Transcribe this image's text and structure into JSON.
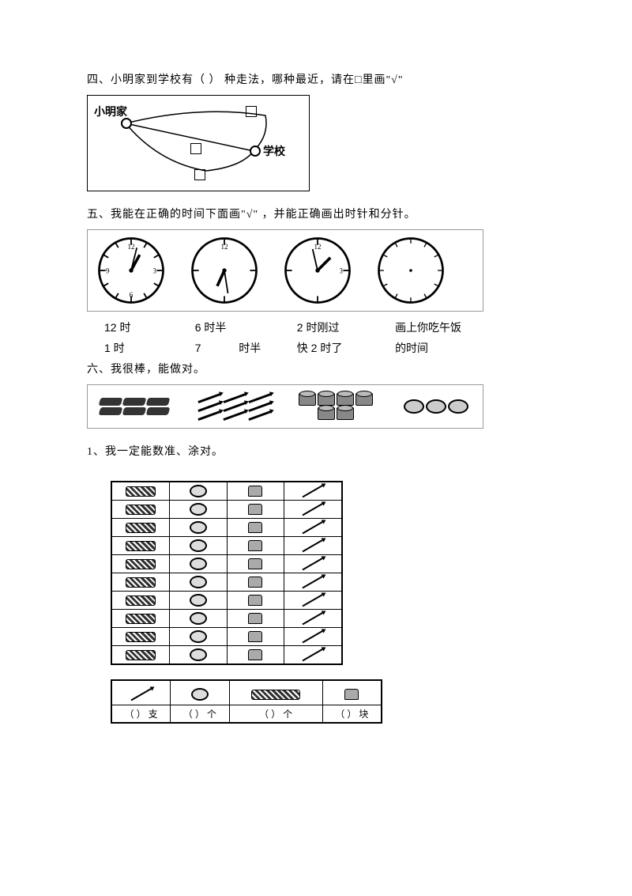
{
  "q4": {
    "title": "四、小明家到学校有（ ）  种走法，哪种最近，请在□里画\"√\"",
    "home_label": "小明家",
    "school_label": "学校"
  },
  "q5": {
    "title": " 五、我能在正确的时间下面画\"√\"  ，并能正确画出时针和分针。",
    "clocks": [
      {
        "hour_angle": -60,
        "min_angle": 20,
        "has_hands": true
      },
      {
        "hour_angle": 200,
        "min_angle": 165,
        "has_hands": true
      },
      {
        "hour_angle": 25,
        "min_angle": -30,
        "has_hands": true
      },
      {
        "has_hands": false
      }
    ],
    "row1": [
      {
        "text": "12 时"
      },
      {
        "text": "6 时半"
      },
      {
        "text": "2 时刚过"
      },
      {
        "text": "画上你吃午饭"
      }
    ],
    "row2": [
      {
        "text": "1 时"
      },
      {
        "text_a": "7",
        "text_b": "时半"
      },
      {
        "text": "快 2 时了"
      },
      {
        "text": "的时间"
      }
    ]
  },
  "q6": {
    "title": "六、我很棒，能做对。",
    "sub1": "1、我一定能数准、涂对。",
    "groups": {
      "erasers": 6,
      "pencils": 9,
      "cakes": 6,
      "rings": 3
    },
    "grid_rows": 10,
    "answers": [
      {
        "unit": "支",
        "icon": "pencil"
      },
      {
        "unit": "个",
        "icon": "ring"
      },
      {
        "unit": "个",
        "icon": "eraser",
        "wide": true
      },
      {
        "unit": "块",
        "icon": "cake"
      }
    ],
    "blank": "（ ）"
  },
  "colors": {
    "text": "#000000",
    "bg": "#ffffff",
    "border": "#000000"
  }
}
